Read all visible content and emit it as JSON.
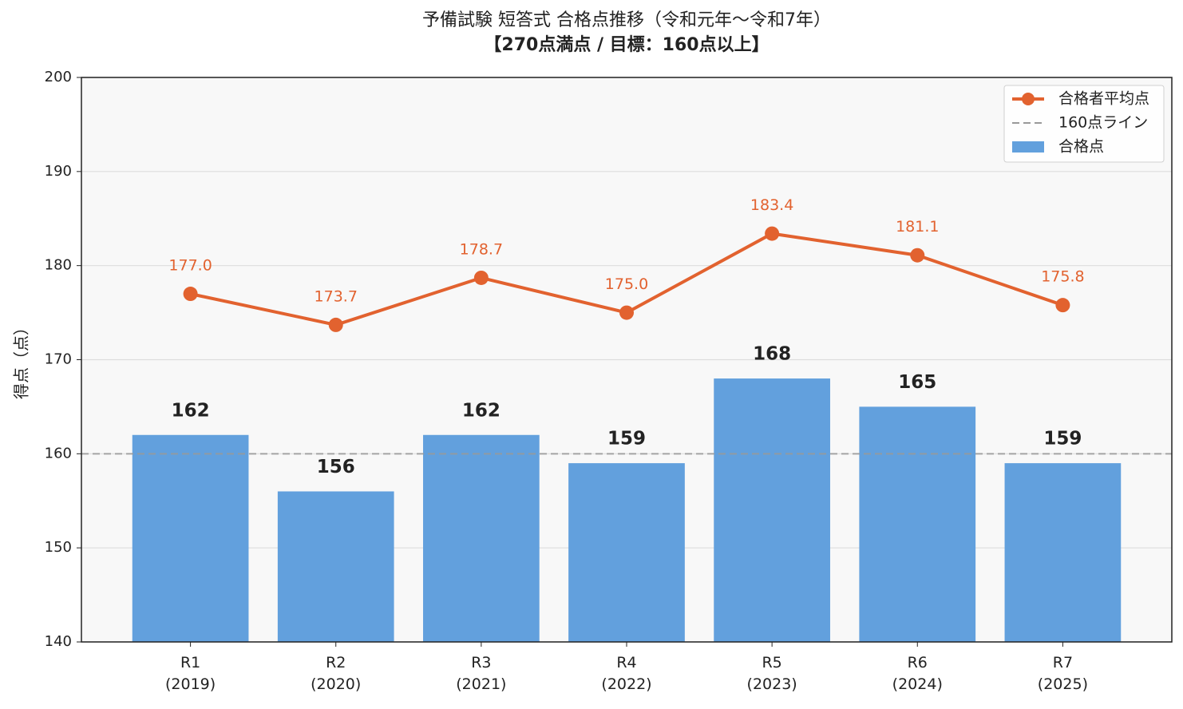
{
  "chart_data": {
    "type": "bar_line",
    "title": "予備試験 短答式 合格点推移（令和元年〜令和7年）",
    "subtitle": "【270点満点 / 目標：160点以上】",
    "y_label": "得点（点）",
    "categories": [
      "R1\n(2019)",
      "R2\n(2020)",
      "R3\n(2021)",
      "R4\n(2022)",
      "R5\n(2023)",
      "R6\n(2024)",
      "R7\n(2025)"
    ],
    "series": [
      {
        "name": "合格点",
        "type": "bar",
        "color": "#62a0dd",
        "values": [
          162,
          156,
          162,
          159,
          168,
          165,
          159
        ]
      },
      {
        "name": "合格者平均点",
        "type": "line",
        "color": "#e2622f",
        "values": [
          177.0,
          173.7,
          178.7,
          175.0,
          183.4,
          181.1,
          175.8
        ],
        "value_labels": [
          "177.0",
          "173.7",
          "178.7",
          "175.0",
          "183.4",
          "181.1",
          "175.8"
        ]
      }
    ],
    "reference_line": {
      "name": "160点ライン",
      "value": 160,
      "color": "#999999"
    },
    "ylim": [
      140,
      200
    ],
    "yticks": [
      140,
      150,
      160,
      170,
      180,
      190,
      200
    ],
    "grid": true,
    "legend": "upper right"
  }
}
